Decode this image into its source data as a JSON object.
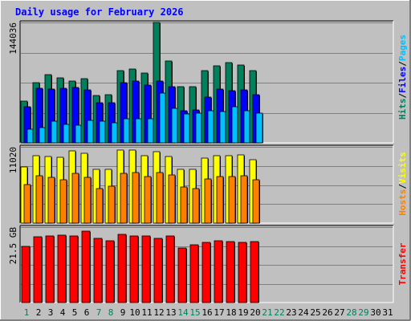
{
  "title": "Daily usage for February 2026",
  "chart_data": [
    {
      "type": "bar",
      "panel": "hits-files-pages",
      "categories": [
        "1",
        "2",
        "3",
        "4",
        "5",
        "6",
        "7",
        "8",
        "9",
        "10",
        "11",
        "12",
        "13",
        "14",
        "15",
        "16",
        "17",
        "18",
        "19",
        "20",
        "21",
        "22",
        "23",
        "24",
        "25",
        "26",
        "27",
        "28",
        "29",
        "30",
        "31"
      ],
      "ymax_label": "144036",
      "ylim": [
        0,
        144036
      ],
      "grid": true,
      "side_labels": [
        {
          "text": "Hits",
          "color": "#00805C"
        },
        {
          "text": "/",
          "color": "#000000"
        },
        {
          "text": "Files",
          "color": "#0000FF"
        },
        {
          "text": "/",
          "color": "#000000"
        },
        {
          "text": "Pages",
          "color": "#00C0FF"
        }
      ],
      "series": [
        {
          "name": "Hits",
          "color": "#00805C",
          "values": [
            50000,
            72000,
            82000,
            78000,
            74000,
            77000,
            57000,
            58000,
            86000,
            88000,
            84000,
            144036,
            98000,
            67000,
            67000,
            86000,
            92000,
            96000,
            93000,
            86000,
            0,
            0,
            0,
            0,
            0,
            0,
            0,
            0,
            0,
            0,
            0
          ]
        },
        {
          "name": "Files",
          "color": "#0000FF",
          "values": [
            43000,
            65000,
            64000,
            65000,
            66000,
            63000,
            48000,
            48000,
            72000,
            74000,
            69000,
            74000,
            67000,
            38000,
            39000,
            55000,
            64000,
            62000,
            63000,
            58000,
            0,
            0,
            0,
            0,
            0,
            0,
            0,
            0,
            0,
            0,
            0
          ]
        },
        {
          "name": "Pages",
          "color": "#00C0FF",
          "values": [
            16000,
            18000,
            26000,
            22000,
            21000,
            27000,
            26000,
            24000,
            29000,
            29000,
            29000,
            60000,
            41000,
            35000,
            36000,
            38000,
            37000,
            43000,
            38000,
            36000,
            0,
            0,
            0,
            0,
            0,
            0,
            0,
            0,
            0,
            0,
            0
          ]
        }
      ]
    },
    {
      "type": "bar",
      "panel": "visits-hosts",
      "categories": [
        "1",
        "2",
        "3",
        "4",
        "5",
        "6",
        "7",
        "8",
        "9",
        "10",
        "11",
        "12",
        "13",
        "14",
        "15",
        "16",
        "17",
        "18",
        "19",
        "20",
        "21",
        "22",
        "23",
        "24",
        "25",
        "26",
        "27",
        "28",
        "29",
        "30",
        "31"
      ],
      "ymax_label": "11020",
      "ylim": [
        0,
        11020
      ],
      "grid": true,
      "side_labels": [
        {
          "text": "Hosts",
          "color": "#FF8000"
        },
        {
          "text": "/",
          "color": "#000000"
        },
        {
          "text": "Visits",
          "color": "#FFFF00"
        }
      ],
      "series": [
        {
          "name": "Visits",
          "color": "#FFFF00",
          "values": [
            8100,
            9700,
            9600,
            9500,
            10400,
            10100,
            7800,
            7800,
            10500,
            10500,
            9800,
            10300,
            9600,
            7800,
            7800,
            9400,
            9700,
            9700,
            9900,
            9200,
            0,
            0,
            0,
            0,
            0,
            0,
            0,
            0,
            0,
            0,
            0
          ]
        },
        {
          "name": "Hosts",
          "color": "#FF8000",
          "values": [
            5600,
            6900,
            6600,
            6300,
            7200,
            6600,
            5000,
            5300,
            7200,
            7300,
            6700,
            7300,
            7000,
            5200,
            5000,
            6400,
            6700,
            6700,
            6900,
            6300,
            0,
            0,
            0,
            0,
            0,
            0,
            0,
            0,
            0,
            0,
            0
          ]
        }
      ]
    },
    {
      "type": "bar",
      "panel": "transfer",
      "categories": [
        "1",
        "2",
        "3",
        "4",
        "5",
        "6",
        "7",
        "8",
        "9",
        "10",
        "11",
        "12",
        "13",
        "14",
        "15",
        "16",
        "17",
        "18",
        "19",
        "20",
        "21",
        "22",
        "23",
        "24",
        "25",
        "26",
        "27",
        "28",
        "29",
        "30",
        "31"
      ],
      "ymax_label": "21.5 GB",
      "ylim": [
        0,
        21.5
      ],
      "grid": true,
      "side_labels": [
        {
          "text": "Transfer",
          "color": "#FF0000"
        }
      ],
      "series": [
        {
          "name": "Transfer",
          "color": "#FF0000",
          "values": [
            16.0,
            18.7,
            19.0,
            19.2,
            18.9,
            20.3,
            18.3,
            17.6,
            19.5,
            18.9,
            18.9,
            18.2,
            19.0,
            15.6,
            16.4,
            17.1,
            17.7,
            17.3,
            17.2,
            17.4,
            0,
            0,
            0,
            0,
            0,
            0,
            0,
            0,
            0,
            0,
            0
          ]
        }
      ]
    }
  ],
  "x_axis": {
    "labels": [
      "1",
      "2",
      "3",
      "4",
      "5",
      "6",
      "7",
      "8",
      "9",
      "10",
      "11",
      "12",
      "13",
      "14",
      "15",
      "16",
      "17",
      "18",
      "19",
      "20",
      "21",
      "22",
      "23",
      "24",
      "25",
      "26",
      "27",
      "28",
      "29",
      "30",
      "31"
    ],
    "weekend_color": "#00805C",
    "weekday_color": "#000000",
    "weekend_days": [
      1,
      7,
      8,
      14,
      15,
      21,
      22,
      28,
      29
    ]
  }
}
